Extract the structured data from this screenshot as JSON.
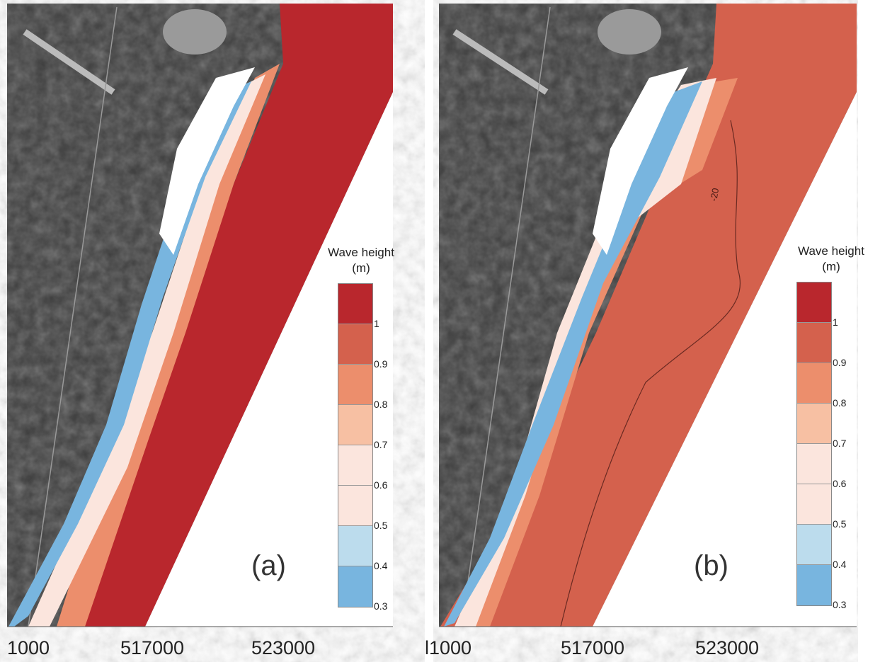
{
  "panels": [
    {
      "id": "a",
      "label": "(a)",
      "legend": {
        "title_line1": "Wave height",
        "title_line2": "(m)"
      },
      "x_ticks": [
        "1000",
        "517000",
        "523000"
      ],
      "offshore_color": "#b9272d"
    },
    {
      "id": "b",
      "label": "(b)",
      "legend": {
        "title_line1": "Wave height",
        "title_line2": "(m)"
      },
      "x_ticks": [
        "l1000",
        "517000",
        "523000"
      ],
      "offshore_color": "#d4614d",
      "contour_label": "-20"
    }
  ],
  "legend_scale": {
    "ticks": [
      "1",
      "0.9",
      "0.8",
      "0.7",
      "0.6",
      "0.5",
      "0.4",
      "0.3"
    ],
    "colors": [
      "#b9272d",
      "#d4614d",
      "#ec8e6c",
      "#f7c0a3",
      "#fbe5dd",
      "#fbe5dd",
      "#bcdced",
      "#78b5df"
    ]
  }
}
